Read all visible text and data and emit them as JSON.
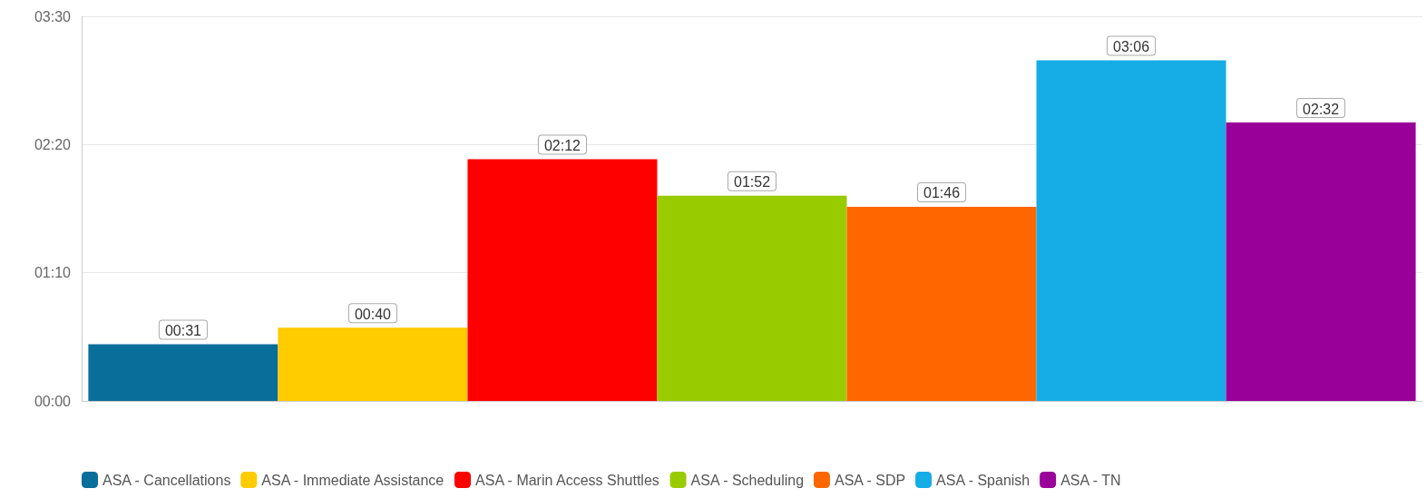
{
  "chart_data": {
    "type": "bar",
    "categories": [
      null
    ],
    "series": [
      {
        "name": "ASA - Cancellations",
        "color": "#0a6e9a",
        "values": [
          31
        ],
        "value_labels": [
          "00:31"
        ]
      },
      {
        "name": "ASA - Immediate Assistance",
        "color": "#ffcc00",
        "values": [
          40
        ],
        "value_labels": [
          "00:40"
        ]
      },
      {
        "name": "ASA - Marin Access Shuttles",
        "color": "#ff0000",
        "values": [
          132
        ],
        "value_labels": [
          "02:12"
        ]
      },
      {
        "name": "ASA - Scheduling",
        "color": "#99cc00",
        "values": [
          112
        ],
        "value_labels": [
          "01:52"
        ]
      },
      {
        "name": "ASA - SDP",
        "color": "#ff6600",
        "values": [
          106
        ],
        "value_labels": [
          "01:46"
        ]
      },
      {
        "name": "ASA - Spanish",
        "color": "#16ace6",
        "values": [
          186
        ],
        "value_labels": [
          "03:06"
        ]
      },
      {
        "name": "ASA - TN",
        "color": "#990099",
        "values": [
          152
        ],
        "value_labels": [
          "02:32"
        ]
      }
    ],
    "ylim": [
      0,
      210
    ],
    "yticks": [
      {
        "value": 0,
        "label": "00:00"
      },
      {
        "value": 70,
        "label": "01:10"
      },
      {
        "value": 140,
        "label": "02:20"
      },
      {
        "value": 210,
        "label": "03:30"
      }
    ],
    "grid": "y",
    "legend": "bottom left"
  }
}
